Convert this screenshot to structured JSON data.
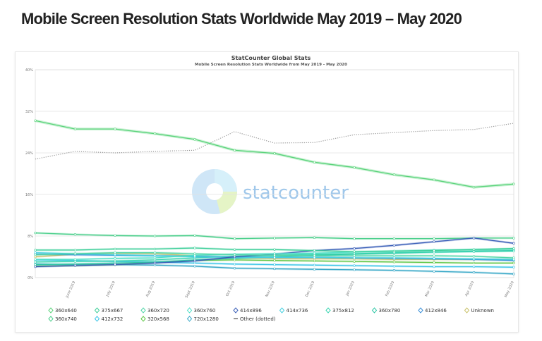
{
  "headline": "Mobile Screen Resolution Stats Worldwide May 2019 – May 2020",
  "chart_data": {
    "type": "line",
    "title": "StatCounter Global Stats",
    "subtitle": "Mobile Screen Resolution Stats Worldwide from May 2019 - May 2020",
    "watermark": "statcounter",
    "xlabel": "",
    "ylabel": "",
    "ylim": [
      0,
      40
    ],
    "yticks": [
      "0%",
      "8%",
      "16%",
      "24%",
      "32%",
      "40%"
    ],
    "grid": true,
    "legend_placement": "bottom",
    "x": [
      "May 2019",
      "June 2019",
      "July 2019",
      "Aug 2019",
      "Sept 2019",
      "Oct 2019",
      "Nov 2019",
      "Dec 2019",
      "Jan 2020",
      "Feb 2020",
      "Mar 2020",
      "Apr 2020",
      "May 2020"
    ],
    "xtick_labels": [
      "June 2019",
      "July 2019",
      "Aug 2019",
      "Sept 2019",
      "Oct 2019",
      "Nov 2019",
      "Dec 2019",
      "Jan 2020",
      "Feb 2020",
      "Mar 2020",
      "Apr 2020",
      "May 2020"
    ],
    "series": [
      {
        "name": "360x640",
        "color": "#5ad37a",
        "values": [
          30.2,
          28.6,
          28.6,
          27.7,
          26.6,
          24.5,
          23.9,
          22.2,
          21.2,
          19.8,
          18.8,
          17.4,
          18.0
        ]
      },
      {
        "name": "375x667",
        "color": "#3fcf9a",
        "values": [
          5.3,
          5.3,
          5.5,
          5.5,
          5.7,
          5.4,
          5.4,
          5.2,
          5.0,
          5.1,
          5.2,
          5.4,
          5.6
        ]
      },
      {
        "name": "360x720",
        "color": "#52d6a8",
        "values": [
          4.4,
          4.6,
          4.8,
          4.8,
          4.6,
          4.4,
          4.3,
          4.2,
          4.2,
          4.2,
          4.2,
          4.1,
          3.8
        ]
      },
      {
        "name": "360x760",
        "color": "#4fe0c8",
        "values": [
          3.5,
          3.5,
          3.7,
          3.8,
          4.3,
          4.5,
          4.6,
          4.7,
          4.9,
          5.1,
          5.3,
          5.4,
          5.5
        ]
      },
      {
        "name": "414x896",
        "color": "#3a5fb8",
        "values": [
          2.1,
          2.3,
          2.5,
          2.8,
          3.2,
          4.0,
          4.5,
          5.2,
          5.6,
          6.2,
          6.9,
          7.6,
          6.6
        ]
      },
      {
        "name": "414x736",
        "color": "#45d0e0",
        "values": [
          4.8,
          4.6,
          4.4,
          4.2,
          4.0,
          3.9,
          3.9,
          3.9,
          3.8,
          3.8,
          3.7,
          3.6,
          3.5
        ]
      },
      {
        "name": "375x812",
        "color": "#38d4b0",
        "values": [
          3.0,
          3.1,
          3.2,
          3.4,
          3.8,
          4.1,
          4.3,
          4.5,
          4.6,
          4.8,
          4.9,
          5.0,
          5.1
        ]
      },
      {
        "name": "360x780",
        "color": "#2fc7a6",
        "values": [
          2.5,
          2.6,
          2.8,
          3.0,
          3.4,
          3.7,
          4.0,
          4.3,
          4.5,
          4.7,
          4.9,
          5.1,
          5.2
        ]
      },
      {
        "name": "412x846",
        "color": "#3b8fd8",
        "values": [
          4.5,
          4.4,
          4.3,
          4.2,
          4.1,
          4.0,
          3.9,
          3.9,
          3.8,
          3.7,
          3.6,
          3.5,
          3.3
        ]
      },
      {
        "name": "Unknown",
        "color": "#c9c26a",
        "values": [
          4.0,
          4.5,
          4.7,
          4.6,
          4.2,
          3.8,
          3.7,
          3.6,
          3.6,
          3.5,
          3.5,
          3.5,
          3.4
        ]
      },
      {
        "name": "360x740",
        "color": "#4ccf8c",
        "values": [
          8.6,
          8.3,
          8.1,
          8.0,
          8.1,
          7.5,
          7.6,
          7.7,
          7.5,
          7.5,
          7.5,
          7.6,
          7.6
        ]
      },
      {
        "name": "412x732",
        "color": "#3ec6e8",
        "values": [
          3.4,
          3.3,
          3.1,
          3.0,
          2.8,
          2.6,
          2.5,
          2.4,
          2.3,
          2.2,
          2.1,
          2.1,
          2.0
        ]
      },
      {
        "name": "320x568",
        "color": "#62c84a",
        "values": [
          2.2,
          2.3,
          2.5,
          2.9,
          3.3,
          3.4,
          3.3,
          3.2,
          3.1,
          3.0,
          2.9,
          2.8,
          2.8
        ]
      },
      {
        "name": "720x1280",
        "color": "#3aa9c8",
        "values": [
          2.6,
          2.5,
          2.5,
          2.4,
          2.2,
          1.8,
          1.7,
          1.6,
          1.5,
          1.4,
          1.2,
          1.0,
          0.7
        ]
      },
      {
        "name": "Other (dotted)",
        "color": "#999999",
        "dotted": true,
        "values": [
          22.8,
          24.3,
          24.0,
          24.3,
          24.5,
          28.1,
          25.9,
          26.0,
          27.5,
          27.9,
          28.3,
          28.5,
          29.7
        ]
      }
    ]
  }
}
